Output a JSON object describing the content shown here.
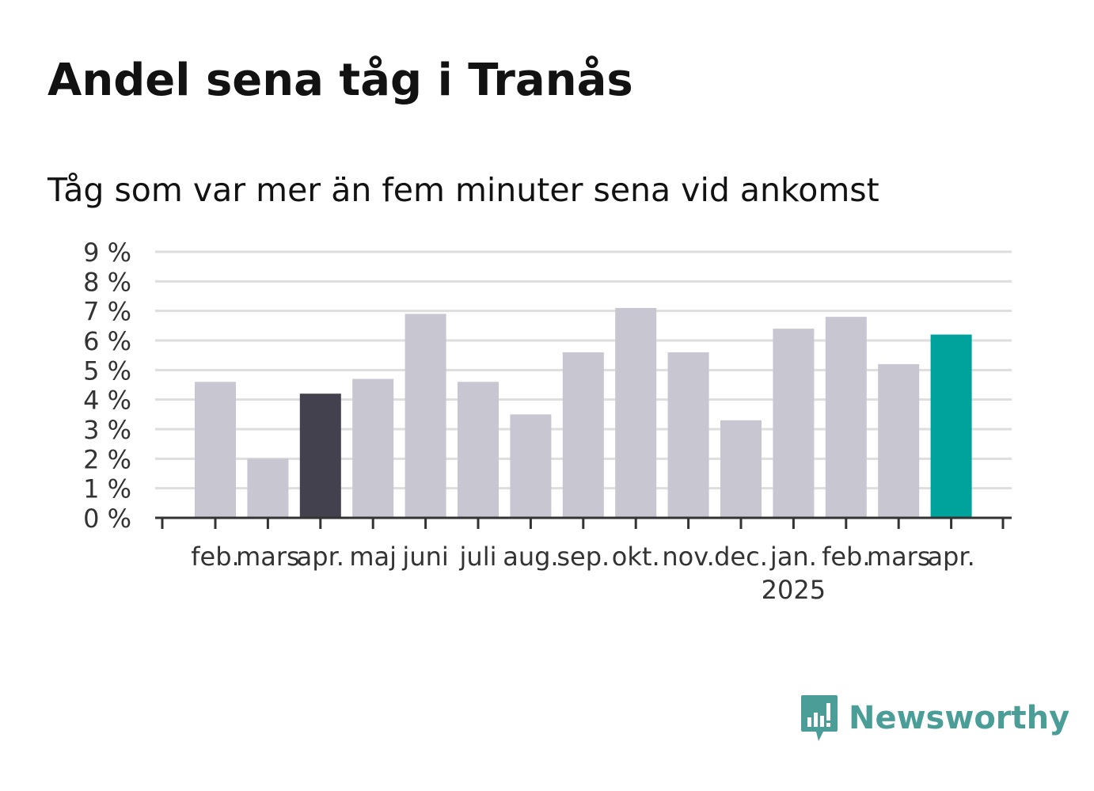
{
  "chart_data": {
    "type": "bar",
    "title": "Andel sena tåg i Tranås",
    "subtitle": "Tåg som var mer än fem minuter sena vid ankomst",
    "categories": [
      "feb.",
      "mars",
      "apr.",
      "maj",
      "juni",
      "juli",
      "aug.",
      "sep.",
      "okt.",
      "nov.",
      "dec.",
      "jan.",
      "feb.",
      "mars",
      "apr."
    ],
    "year_label": "2025",
    "values": [
      4.6,
      2.0,
      4.2,
      4.7,
      6.9,
      4.6,
      3.5,
      5.6,
      7.1,
      5.6,
      3.3,
      6.4,
      6.8,
      5.2,
      6.2
    ],
    "bar_colors": [
      "#c8c7d1",
      "#c8c7d1",
      "#42414d",
      "#c8c7d1",
      "#c8c7d1",
      "#c8c7d1",
      "#c8c7d1",
      "#c8c7d1",
      "#c8c7d1",
      "#c8c7d1",
      "#c8c7d1",
      "#c8c7d1",
      "#c8c7d1",
      "#c8c7d1",
      "#00a39b"
    ],
    "yticks": [
      "0 %",
      "1 %",
      "2 %",
      "3 %",
      "4 %",
      "5 %",
      "6 %",
      "7 %",
      "8 %",
      "9 %"
    ],
    "ylim": [
      0,
      9
    ],
    "xlabel": "",
    "ylabel": "",
    "grid": true
  },
  "brand": {
    "name": "Newsworthy",
    "icon": "newsworthy-logo-icon",
    "color": "#4a9e97"
  }
}
